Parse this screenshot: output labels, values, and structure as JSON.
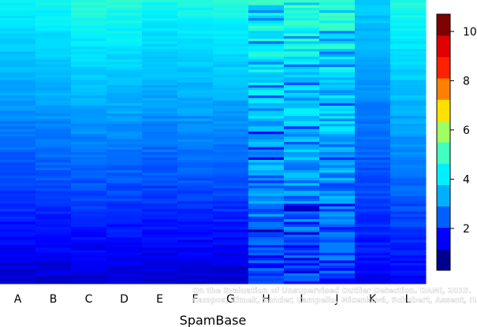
{
  "chart_data": {
    "type": "heatmap",
    "title": "",
    "xlabel": "SpamBase",
    "ylabel": "",
    "categories": [
      "A",
      "B",
      "C",
      "D",
      "E",
      "F",
      "G",
      "H",
      "I",
      "J",
      "K",
      "L"
    ],
    "rows_per_column": 110,
    "sort_order": "descending score from top to bottom within each column",
    "column_ranges": [
      {
        "label": "A",
        "top": 4.2,
        "bottom": 0.8
      },
      {
        "label": "B",
        "top": 4.4,
        "bottom": 0.8
      },
      {
        "label": "C",
        "top": 4.7,
        "bottom": 0.8
      },
      {
        "label": "D",
        "top": 4.7,
        "bottom": 0.8
      },
      {
        "label": "E",
        "top": 4.4,
        "bottom": 0.8
      },
      {
        "label": "F",
        "top": 4.5,
        "bottom": 0.8
      },
      {
        "label": "G",
        "top": 4.6,
        "bottom": 0.8
      },
      {
        "label": "H",
        "top": 4.7,
        "bottom": 1.8
      },
      {
        "label": "I",
        "top": 4.8,
        "bottom": 1.8
      },
      {
        "label": "J",
        "top": 4.8,
        "bottom": 1.8
      },
      {
        "label": "K",
        "top": 3.6,
        "bottom": 1.2
      },
      {
        "label": "L",
        "top": 4.6,
        "bottom": 1.2
      }
    ],
    "noisy_columns": [
      "H",
      "I",
      "J"
    ],
    "colorbar": {
      "min": 0.3,
      "max": 10.7,
      "ticks": [
        2,
        4,
        6,
        8,
        10
      ],
      "colors": [
        "#00008f",
        "#0000ff",
        "#0060ff",
        "#00b0ff",
        "#00f0ff",
        "#40ffbf",
        "#a0ff60",
        "#ffe000",
        "#ff8000",
        "#ff2000",
        "#e00000",
        "#800000"
      ]
    },
    "grid": false,
    "legend": "colorbar on right"
  },
  "watermark": {
    "line1": "On the Evaluation of Unsupervised Outlier Detection. DAMI, 2015.",
    "line2": "Campos, Zimek, Sander, Campello, Micenková, Schubert, Assent, Houle"
  }
}
